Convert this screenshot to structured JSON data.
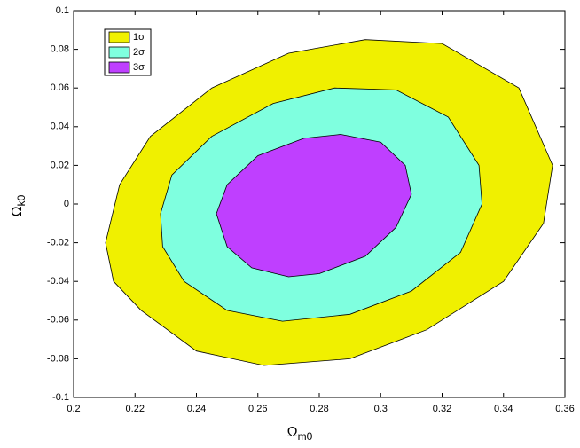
{
  "chart_data": {
    "type": "contour",
    "xlabel": {
      "text": "Ω",
      "subscript": "m0"
    },
    "ylabel": {
      "text": "Ω",
      "subscript": "k0"
    },
    "xlim": [
      0.2,
      0.36
    ],
    "ylim": [
      -0.1,
      0.1
    ],
    "xticks": [
      0.2,
      0.22,
      0.24,
      0.26,
      0.28,
      0.3,
      0.32,
      0.34,
      0.36
    ],
    "yticks": [
      -0.1,
      -0.08,
      -0.06,
      -0.04,
      -0.02,
      0,
      0.02,
      0.04,
      0.06,
      0.08,
      0.1
    ],
    "legend": "upper left",
    "series": [
      {
        "name": "1σ",
        "color": "#f0f000",
        "x": [
          0.2104,
          0.215,
          0.225,
          0.245,
          0.27,
          0.295,
          0.32,
          0.345,
          0.356,
          0.353,
          0.34,
          0.315,
          0.29,
          0.262,
          0.24,
          0.222,
          0.213
        ],
        "y": [
          -0.02,
          0.01,
          0.035,
          0.06,
          0.078,
          0.085,
          0.083,
          0.06,
          0.02,
          -0.01,
          -0.04,
          -0.065,
          -0.08,
          -0.0835,
          -0.076,
          -0.055,
          -0.04
        ]
      },
      {
        "name": "2σ",
        "color": "#7fffdf",
        "x": [
          0.2283,
          0.232,
          0.245,
          0.265,
          0.285,
          0.305,
          0.322,
          0.332,
          0.333,
          0.326,
          0.31,
          0.29,
          0.268,
          0.25,
          0.236,
          0.229
        ],
        "y": [
          -0.005,
          0.015,
          0.035,
          0.052,
          0.06,
          0.059,
          0.045,
          0.02,
          0,
          -0.025,
          -0.045,
          -0.057,
          -0.0606,
          -0.055,
          -0.04,
          -0.022
        ]
      },
      {
        "name": "3σ",
        "color": "#bf3fff",
        "x": [
          0.2465,
          0.25,
          0.26,
          0.275,
          0.287,
          0.3,
          0.308,
          0.31,
          0.305,
          0.295,
          0.28,
          0.27,
          0.258,
          0.25
        ],
        "y": [
          -0.005,
          0.01,
          0.025,
          0.034,
          0.036,
          0.032,
          0.02,
          0.005,
          -0.012,
          -0.027,
          -0.036,
          -0.0376,
          -0.033,
          -0.022
        ]
      }
    ]
  }
}
